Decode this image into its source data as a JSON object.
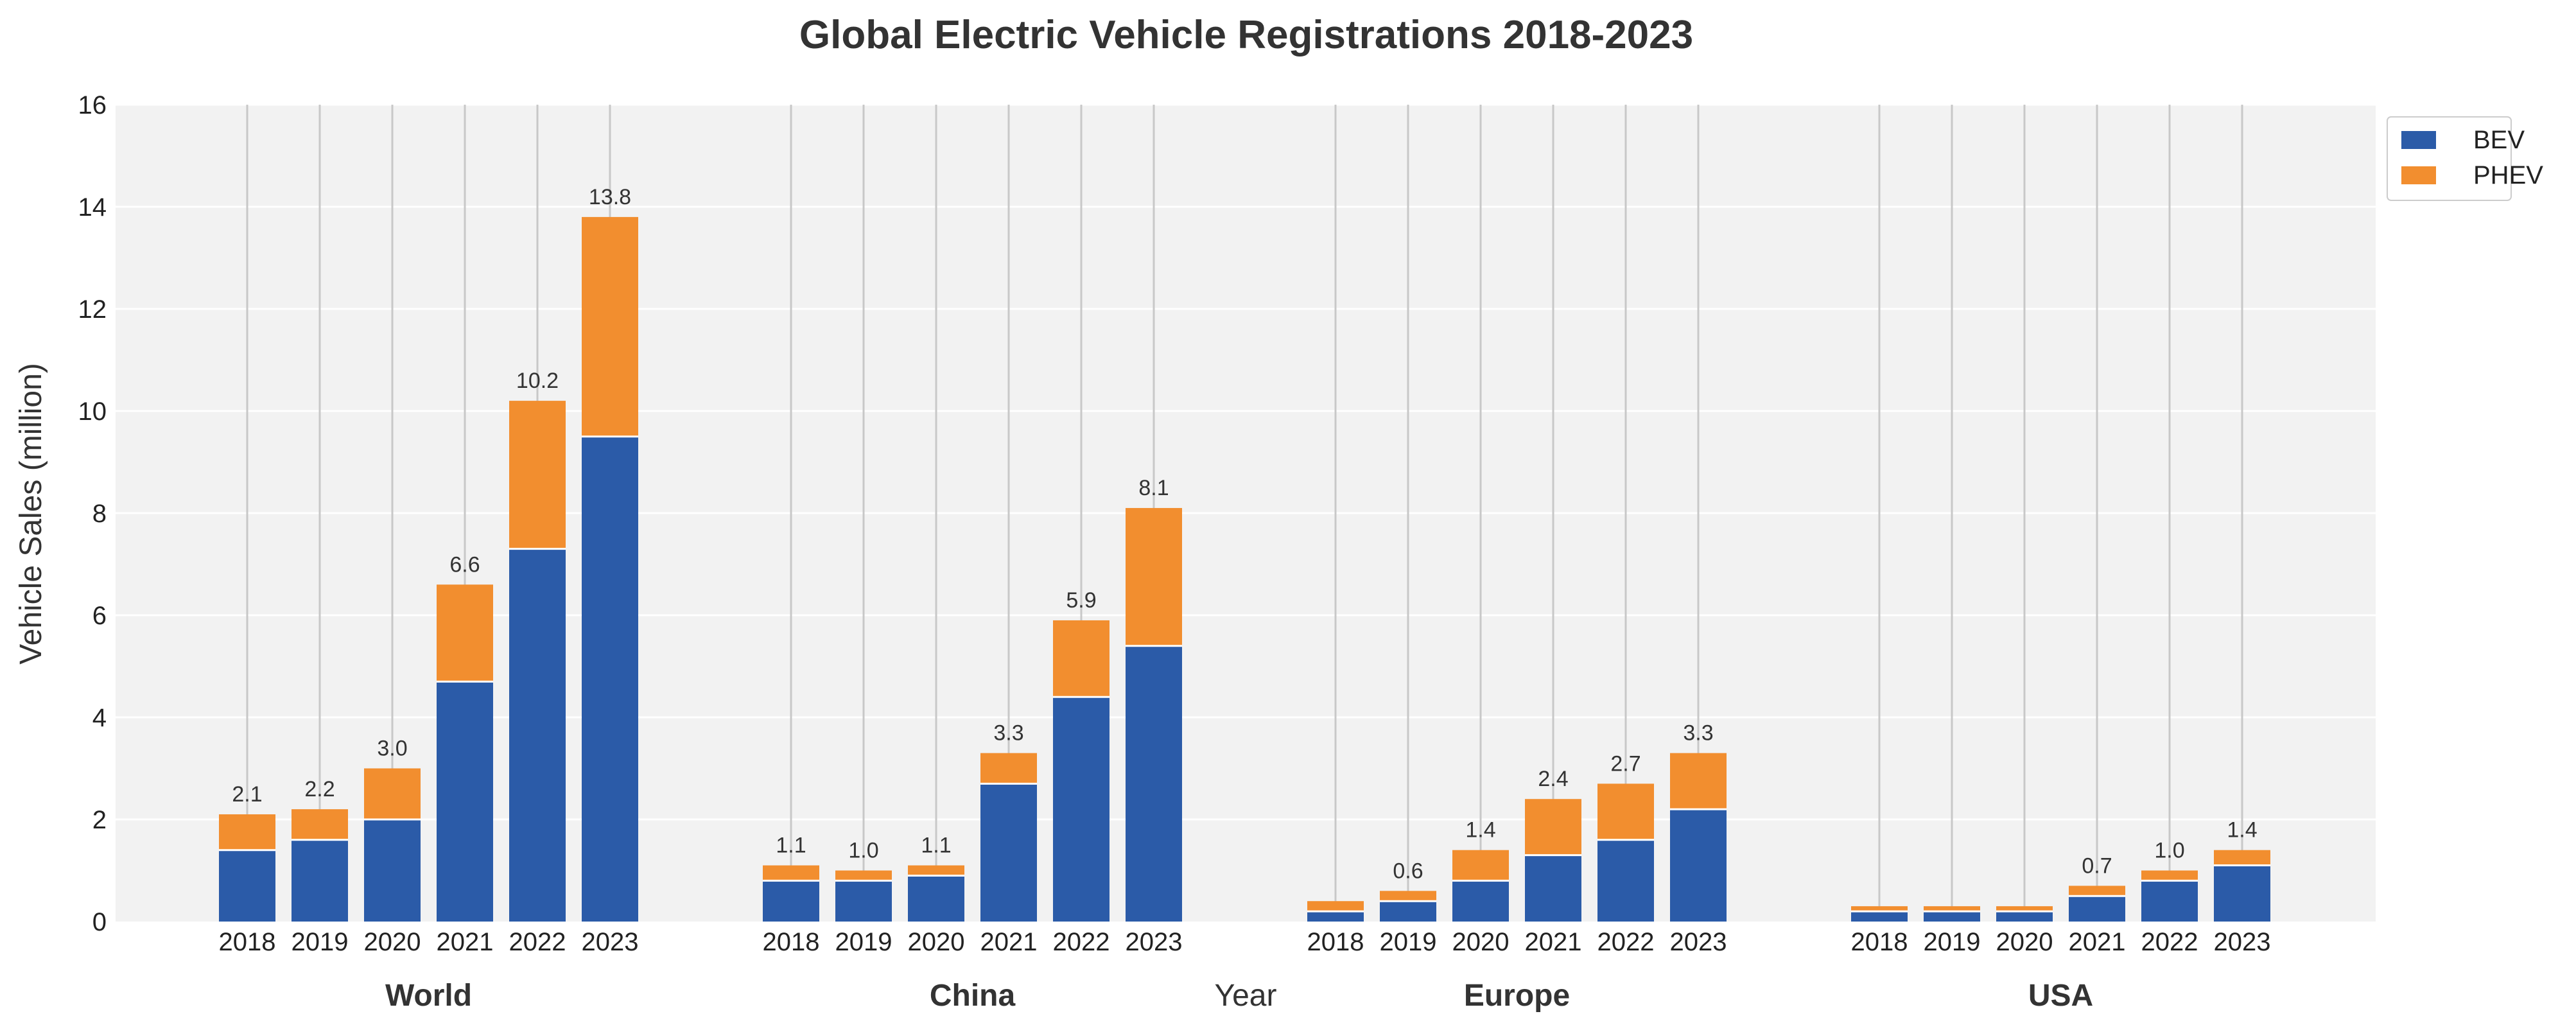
{
  "chart_data": {
    "type": "bar",
    "stacked": true,
    "title": "Global Electric Vehicle Registrations 2018-2023",
    "xlabel": "Year",
    "ylabel": "Vehicle Sales (million)",
    "ylim": [
      0,
      16
    ],
    "yticks": [
      "0",
      "2",
      "4",
      "6",
      "8",
      "10",
      "12",
      "14",
      "16"
    ],
    "grid": true,
    "legend_position": "top-right",
    "years": [
      "2018",
      "2019",
      "2020",
      "2021",
      "2022",
      "2023"
    ],
    "series": [
      {
        "name": "BEV",
        "color": "#2b5ba8"
      },
      {
        "name": "PHEV",
        "color": "#f28e2f"
      }
    ],
    "groups": [
      {
        "name": "World",
        "BEV": [
          1.4,
          1.6,
          2.0,
          4.7,
          7.3,
          9.5
        ],
        "PHEV": [
          0.7,
          0.6,
          1.0,
          1.9,
          2.9,
          4.3
        ],
        "totals": [
          "2.1",
          "2.2",
          "3.0",
          "6.6",
          "10.2",
          "13.8"
        ]
      },
      {
        "name": "China",
        "BEV": [
          0.8,
          0.8,
          0.9,
          2.7,
          4.4,
          5.4
        ],
        "PHEV": [
          0.3,
          0.2,
          0.2,
          0.6,
          1.5,
          2.7
        ],
        "totals": [
          "1.1",
          "1.0",
          "1.1",
          "3.3",
          "5.9",
          "8.1"
        ]
      },
      {
        "name": "Europe",
        "BEV": [
          0.2,
          0.4,
          0.8,
          1.3,
          1.6,
          2.2
        ],
        "PHEV": [
          0.2,
          0.2,
          0.6,
          1.1,
          1.1,
          1.1
        ],
        "totals": [
          "",
          "0.6",
          "1.4",
          "2.4",
          "2.7",
          "3.3"
        ]
      },
      {
        "name": "USA",
        "BEV": [
          0.2,
          0.2,
          0.2,
          0.5,
          0.8,
          1.1
        ],
        "PHEV": [
          0.1,
          0.1,
          0.1,
          0.2,
          0.2,
          0.3
        ],
        "totals": [
          "",
          "",
          "",
          "0.7",
          "1.0",
          "1.4"
        ]
      }
    ]
  }
}
